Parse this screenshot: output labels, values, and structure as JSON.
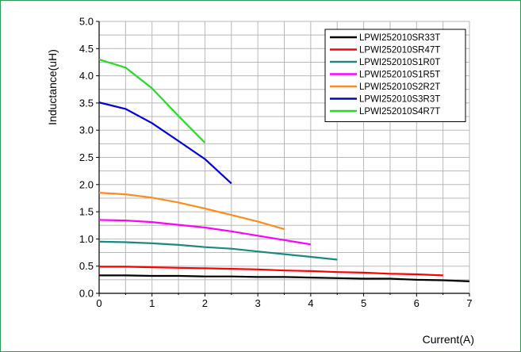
{
  "chart_data": {
    "type": "line",
    "xlabel": "Current(A)",
    "ylabel": "Inductance(uH)",
    "xlim": [
      0,
      7
    ],
    "ylim": [
      0,
      5
    ],
    "xticks": [
      0,
      1,
      2,
      3,
      4,
      5,
      6,
      7
    ],
    "yticks": [
      0.0,
      0.5,
      1.0,
      1.5,
      2.0,
      2.5,
      3.0,
      3.5,
      4.0,
      4.5,
      5.0
    ],
    "ytick_labels": [
      "0.0",
      "0.5",
      "1.0",
      "1.5",
      "2.0",
      "2.5",
      "3.0",
      "3.5",
      "4.0",
      "4.5",
      "5.0"
    ],
    "xtick_labels": [
      "0",
      "1",
      "2",
      "3",
      "4",
      "5",
      "6",
      "7"
    ],
    "grid": true,
    "legend_position": "top-right",
    "series": [
      {
        "name": "LPWI252010SR33T",
        "color": "#000000",
        "x": [
          0,
          0.5,
          1,
          1.5,
          2,
          2.5,
          3,
          3.5,
          4,
          4.5,
          5,
          5.5,
          6,
          6.5,
          7
        ],
        "y": [
          0.33,
          0.33,
          0.32,
          0.32,
          0.31,
          0.31,
          0.3,
          0.3,
          0.29,
          0.28,
          0.27,
          0.27,
          0.25,
          0.24,
          0.22
        ]
      },
      {
        "name": "LPWI252010SR47T",
        "color": "#ff0000",
        "x": [
          0,
          0.5,
          1,
          1.5,
          2,
          2.5,
          3,
          3.5,
          4,
          4.5,
          5,
          5.5,
          6,
          6.5
        ],
        "y": [
          0.49,
          0.49,
          0.48,
          0.47,
          0.46,
          0.45,
          0.44,
          0.42,
          0.41,
          0.39,
          0.38,
          0.36,
          0.35,
          0.33
        ]
      },
      {
        "name": "LPWI252010S1R0T",
        "color": "#1a8a7e",
        "x": [
          0,
          0.5,
          1,
          1.5,
          2,
          2.5,
          3,
          3.5,
          4,
          4.5
        ],
        "y": [
          0.95,
          0.94,
          0.92,
          0.89,
          0.85,
          0.82,
          0.77,
          0.72,
          0.67,
          0.62
        ]
      },
      {
        "name": "LPWI252010S1R5T",
        "color": "#ff00ff",
        "x": [
          0,
          0.5,
          1,
          1.5,
          2,
          2.5,
          3,
          3.5,
          4
        ],
        "y": [
          1.35,
          1.34,
          1.31,
          1.26,
          1.21,
          1.14,
          1.06,
          0.98,
          0.9
        ]
      },
      {
        "name": "LPWI252010S2R2T",
        "color": "#ff8c1a",
        "x": [
          0,
          0.5,
          1,
          1.5,
          2,
          2.5,
          3,
          3.5
        ],
        "y": [
          1.85,
          1.82,
          1.76,
          1.67,
          1.56,
          1.44,
          1.32,
          1.18
        ]
      },
      {
        "name": "LPWI252010S3R3T",
        "color": "#0000e0",
        "x": [
          0,
          0.5,
          1,
          1.5,
          2,
          2.5
        ],
        "y": [
          3.51,
          3.39,
          3.13,
          2.8,
          2.47,
          2.02
        ]
      },
      {
        "name": "LPWI252010S4R7T",
        "color": "#22dd22",
        "x": [
          0,
          0.5,
          1,
          1.5,
          2
        ],
        "y": [
          4.3,
          4.15,
          3.77,
          3.26,
          2.77
        ]
      }
    ]
  }
}
